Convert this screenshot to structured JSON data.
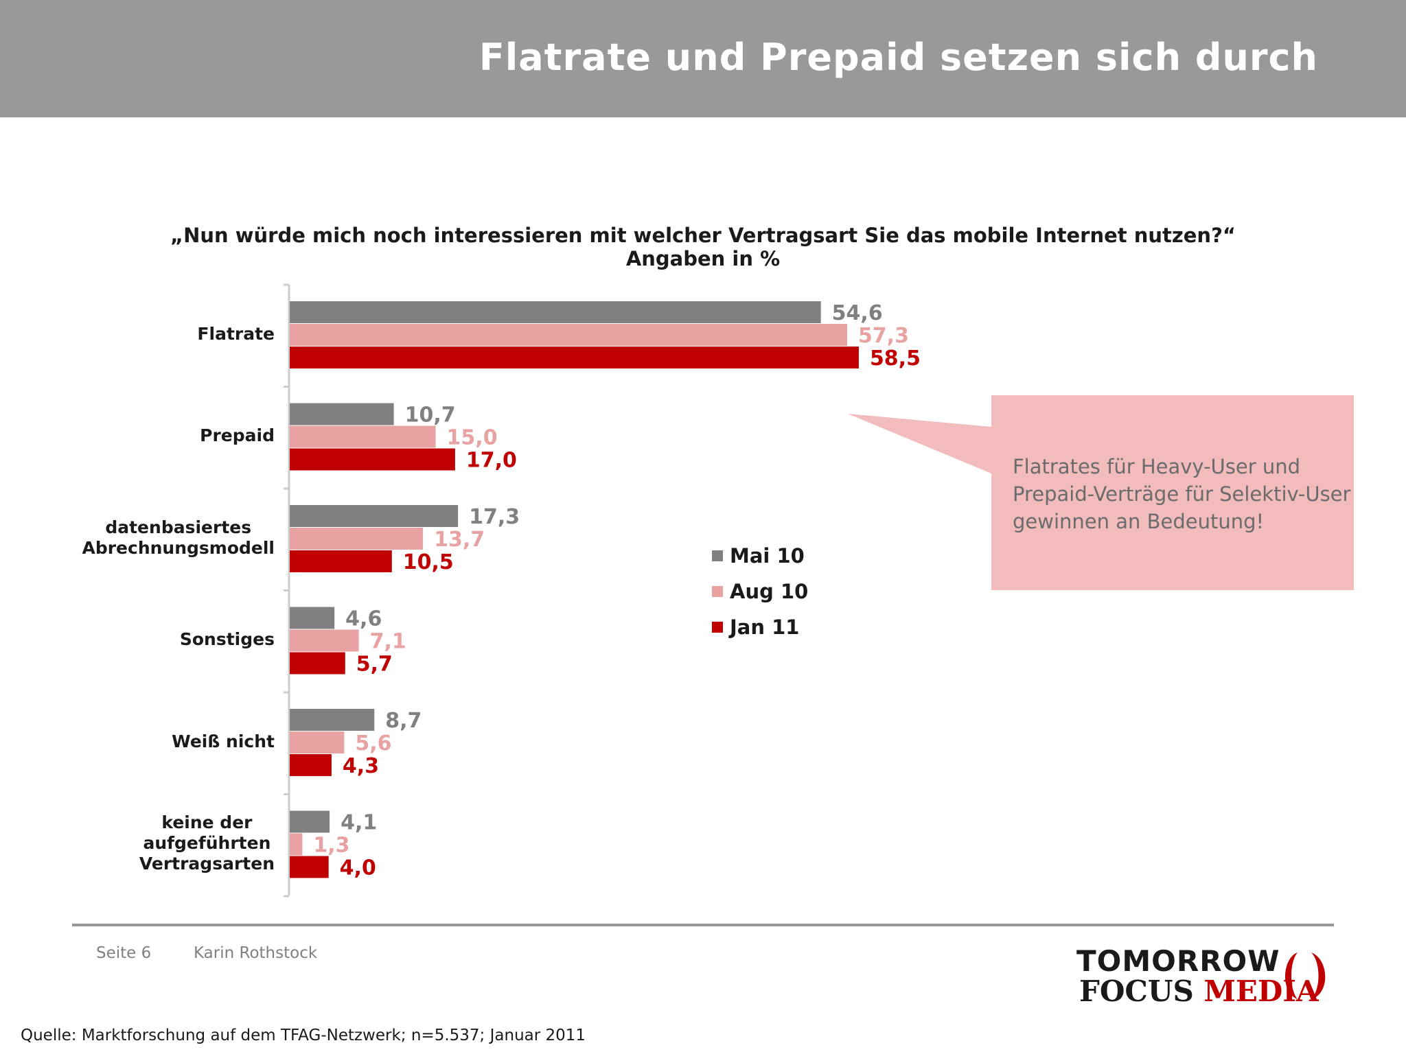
{
  "slide_title": "Flatrate und Prepaid setzen sich durch",
  "chart_data": {
    "type": "bar",
    "orientation": "horizontal",
    "title": "„Nun würde mich noch interessieren mit welcher Vertragsart Sie das mobile Internet nutzen?“",
    "subtitle": "Angaben in %",
    "categories": [
      [
        "Flatrate"
      ],
      [
        "Prepaid"
      ],
      [
        "datenbasiertes",
        "Abrechnungsmodell"
      ],
      [
        "Sonstiges"
      ],
      [
        "Weiß nicht"
      ],
      [
        "keine der",
        "aufgeführten",
        "Vertragsarten"
      ]
    ],
    "series": [
      {
        "name": "Mai 10",
        "color": "#808080",
        "label_color": "#808080",
        "values": [
          54.6,
          10.7,
          17.3,
          4.6,
          8.7,
          4.1
        ],
        "labels": [
          "54,6",
          "10,7",
          "17,3",
          "4,6",
          "8,7",
          "4,1"
        ]
      },
      {
        "name": "Aug 10",
        "color": "#e8a2a2",
        "label_color": "#e8a2a2",
        "values": [
          57.3,
          15.0,
          13.7,
          7.1,
          5.6,
          1.3
        ],
        "labels": [
          "57,3",
          "15,0",
          "13,7",
          "7,1",
          "5,6",
          "1,3"
        ]
      },
      {
        "name": "Jan 11",
        "color": "#c00000",
        "label_color": "#c00000",
        "values": [
          58.5,
          17.0,
          10.5,
          5.7,
          4.3,
          4.0
        ],
        "labels": [
          "58,5",
          "17,0",
          "10,5",
          "5,7",
          "4,3",
          "4,0"
        ]
      }
    ],
    "xlim": [
      0,
      100
    ],
    "grid": false,
    "legend_position": "right"
  },
  "callout": {
    "text": "Flatrates für Heavy-User und Prepaid-Verträge für Selektiv-User gewinnen an Bedeutung!",
    "background": "#f2bcbd"
  },
  "footer": {
    "page": "Seite 6",
    "author": "Karin Rothstock",
    "source": "Quelle: Marktforschung auf dem TFAG-Netzwerk; n=5.537; Januar 2011"
  },
  "logo": {
    "line1": "TOMORROW",
    "line2_a": "FOCUS",
    "line2_b": "MEDIA"
  },
  "colors": {
    "title_bar": "#999999",
    "accent": "#c00000"
  }
}
